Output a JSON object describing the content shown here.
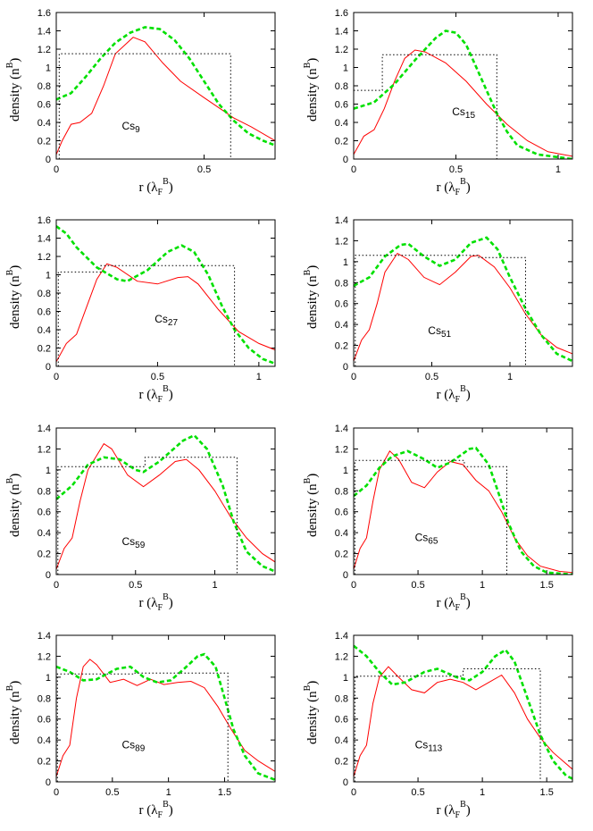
{
  "chart_data": [
    {
      "type": "line",
      "xlabel": {
        "text": "r (λ",
        "sub": "F",
        "sup": "B",
        "end": ")"
      },
      "ylabel": {
        "text": "density (n",
        "sup": "B",
        "end": ")"
      },
      "annotation": {
        "text": "Cs",
        "sub": "9"
      },
      "xlim": [
        0,
        0.74
      ],
      "xticks": [
        0,
        0.5
      ],
      "ylim": [
        0,
        1.6
      ],
      "yticks": [
        0,
        0.2,
        0.4,
        0.6,
        0.8,
        1,
        1.2,
        1.4,
        1.6
      ],
      "series": [
        {
          "style": "solid",
          "color": "#ff0000",
          "x": [
            0,
            0.02,
            0.05,
            0.08,
            0.12,
            0.16,
            0.2,
            0.26,
            0.3,
            0.36,
            0.42,
            0.5,
            0.6,
            0.66,
            0.74
          ],
          "values": [
            0.05,
            0.2,
            0.38,
            0.4,
            0.5,
            0.8,
            1.15,
            1.33,
            1.28,
            1.05,
            0.85,
            0.67,
            0.45,
            0.35,
            0.2
          ]
        },
        {
          "style": "dashed",
          "color": "#00e000",
          "x": [
            0,
            0.05,
            0.1,
            0.15,
            0.2,
            0.25,
            0.3,
            0.35,
            0.4,
            0.45,
            0.5,
            0.55,
            0.6,
            0.65,
            0.7,
            0.74
          ],
          "values": [
            0.65,
            0.72,
            0.9,
            1.1,
            1.27,
            1.38,
            1.44,
            1.42,
            1.3,
            1.1,
            0.85,
            0.6,
            0.42,
            0.28,
            0.2,
            0.15
          ]
        },
        {
          "style": "dotted",
          "color": "#000000",
          "x": [
            0.01,
            0.01,
            0.59,
            0.59
          ],
          "values": [
            0,
            1.15,
            1.15,
            0
          ]
        }
      ]
    },
    {
      "type": "line",
      "xlabel": {
        "text": "r (λ",
        "sub": "F",
        "sup": "B",
        "end": ")"
      },
      "ylabel": {
        "text": "density (n",
        "sup": "B",
        "end": ")"
      },
      "annotation": {
        "text": "Cs",
        "sub": "15"
      },
      "xlim": [
        0,
        1.07
      ],
      "xticks": [
        0,
        0.5,
        1
      ],
      "ylim": [
        0,
        1.6
      ],
      "yticks": [
        0,
        0.2,
        0.4,
        0.6,
        0.8,
        1,
        1.2,
        1.4,
        1.6
      ],
      "series": [
        {
          "style": "solid",
          "color": "#ff0000",
          "x": [
            0,
            0.05,
            0.1,
            0.15,
            0.2,
            0.25,
            0.3,
            0.35,
            0.45,
            0.55,
            0.65,
            0.75,
            0.85,
            0.95,
            1.07
          ],
          "values": [
            0.05,
            0.25,
            0.32,
            0.55,
            0.85,
            1.1,
            1.19,
            1.17,
            1.05,
            0.85,
            0.6,
            0.38,
            0.2,
            0.08,
            0.03
          ]
        },
        {
          "style": "dashed",
          "color": "#00e000",
          "x": [
            0,
            0.1,
            0.2,
            0.3,
            0.4,
            0.45,
            0.5,
            0.55,
            0.6,
            0.65,
            0.7,
            0.75,
            0.8,
            0.9,
            1.07
          ],
          "values": [
            0.55,
            0.62,
            0.82,
            1.08,
            1.32,
            1.4,
            1.38,
            1.25,
            1.0,
            0.75,
            0.5,
            0.3,
            0.15,
            0.05,
            0
          ]
        },
        {
          "style": "dotted",
          "color": "#000000",
          "x": [
            0,
            0.14,
            0.14,
            0.7,
            0.7
          ],
          "values": [
            0.75,
            0.75,
            1.14,
            1.14,
            0
          ]
        }
      ]
    },
    {
      "type": "line",
      "xlabel": {
        "text": "r (λ",
        "sub": "F",
        "sup": "B",
        "end": ")"
      },
      "ylabel": {
        "text": "density (n",
        "sup": "B",
        "end": ")"
      },
      "annotation": {
        "text": "Cs",
        "sub": "27"
      },
      "xlim": [
        0,
        1.08
      ],
      "xticks": [
        0,
        0.5,
        1
      ],
      "ylim": [
        0,
        1.6
      ],
      "yticks": [
        0,
        0.2,
        0.4,
        0.6,
        0.8,
        1,
        1.2,
        1.4,
        1.6
      ],
      "series": [
        {
          "style": "solid",
          "color": "#ff0000",
          "x": [
            0,
            0.05,
            0.1,
            0.15,
            0.2,
            0.25,
            0.3,
            0.4,
            0.5,
            0.6,
            0.65,
            0.7,
            0.8,
            0.9,
            1.0,
            1.08
          ],
          "values": [
            0.05,
            0.25,
            0.35,
            0.65,
            0.95,
            1.12,
            1.08,
            0.93,
            0.9,
            0.97,
            0.98,
            0.9,
            0.62,
            0.38,
            0.25,
            0.18
          ]
        },
        {
          "style": "dashed",
          "color": "#00e000",
          "x": [
            0,
            0.05,
            0.1,
            0.2,
            0.3,
            0.35,
            0.45,
            0.55,
            0.62,
            0.68,
            0.75,
            0.82,
            0.88,
            0.95,
            1.02,
            1.08
          ],
          "values": [
            1.53,
            1.45,
            1.3,
            1.08,
            0.95,
            0.93,
            1.05,
            1.25,
            1.32,
            1.25,
            1.0,
            0.65,
            0.4,
            0.2,
            0.08,
            0.03
          ]
        },
        {
          "style": "dotted",
          "color": "#000000",
          "x": [
            0.01,
            0.01,
            0.22,
            0.22,
            0.88,
            0.88
          ],
          "values": [
            0,
            1.03,
            1.03,
            1.1,
            1.1,
            0
          ]
        }
      ]
    },
    {
      "type": "line",
      "xlabel": {
        "text": "r (λ",
        "sub": "F",
        "sup": "B",
        "end": ")"
      },
      "ylabel": {
        "text": "density (n",
        "sup": "B",
        "end": ")"
      },
      "annotation": {
        "text": "Cs",
        "sub": "51"
      },
      "xlim": [
        0,
        1.4
      ],
      "xticks": [
        0,
        0.5,
        1
      ],
      "ylim": [
        0,
        1.4
      ],
      "yticks": [
        0,
        0.2,
        0.4,
        0.6,
        0.8,
        1,
        1.2,
        1.4
      ],
      "series": [
        {
          "style": "solid",
          "color": "#ff0000",
          "x": [
            0,
            0.05,
            0.1,
            0.15,
            0.2,
            0.28,
            0.35,
            0.45,
            0.55,
            0.65,
            0.75,
            0.8,
            0.9,
            1.0,
            1.1,
            1.2,
            1.3,
            1.4
          ],
          "values": [
            0.05,
            0.25,
            0.35,
            0.6,
            0.9,
            1.08,
            1.02,
            0.85,
            0.78,
            0.9,
            1.05,
            1.06,
            0.95,
            0.75,
            0.5,
            0.3,
            0.18,
            0.12
          ]
        },
        {
          "style": "dashed",
          "color": "#00e000",
          "x": [
            0,
            0.1,
            0.2,
            0.3,
            0.35,
            0.45,
            0.55,
            0.65,
            0.75,
            0.85,
            0.92,
            1.0,
            1.1,
            1.2,
            1.3,
            1.4
          ],
          "values": [
            0.77,
            0.85,
            1.05,
            1.16,
            1.17,
            1.05,
            0.96,
            1.02,
            1.18,
            1.23,
            1.12,
            0.85,
            0.55,
            0.3,
            0.12,
            0.05
          ]
        },
        {
          "style": "dotted",
          "color": "#000000",
          "x": [
            0.01,
            0.01,
            0.8,
            0.8,
            1.1,
            1.1
          ],
          "values": [
            0,
            1.06,
            1.06,
            1.04,
            1.04,
            0
          ]
        }
      ]
    },
    {
      "type": "line",
      "xlabel": {
        "text": "r (λ",
        "sub": "F",
        "sup": "B",
        "end": ")"
      },
      "ylabel": {
        "text": "density (n",
        "sup": "B",
        "end": ")"
      },
      "annotation": {
        "text": "Cs",
        "sub": "59"
      },
      "xlim": [
        0,
        1.38
      ],
      "xticks": [
        0,
        0.5,
        1
      ],
      "ylim": [
        0,
        1.4
      ],
      "yticks": [
        0,
        0.2,
        0.4,
        0.6,
        0.8,
        1,
        1.2,
        1.4
      ],
      "series": [
        {
          "style": "solid",
          "color": "#ff0000",
          "x": [
            0,
            0.05,
            0.1,
            0.15,
            0.2,
            0.3,
            0.35,
            0.45,
            0.55,
            0.65,
            0.75,
            0.82,
            0.9,
            1.0,
            1.1,
            1.2,
            1.3,
            1.38
          ],
          "values": [
            0.05,
            0.25,
            0.35,
            0.7,
            1.0,
            1.25,
            1.2,
            0.95,
            0.84,
            0.95,
            1.08,
            1.1,
            1.0,
            0.8,
            0.55,
            0.35,
            0.2,
            0.12
          ]
        },
        {
          "style": "dashed",
          "color": "#00e000",
          "x": [
            0,
            0.1,
            0.2,
            0.3,
            0.4,
            0.5,
            0.55,
            0.65,
            0.8,
            0.87,
            0.95,
            1.05,
            1.12,
            1.2,
            1.3,
            1.38
          ],
          "values": [
            0.72,
            0.85,
            1.05,
            1.12,
            1.1,
            1.0,
            0.98,
            1.08,
            1.28,
            1.33,
            1.2,
            0.85,
            0.5,
            0.22,
            0.08,
            0.03
          ]
        },
        {
          "style": "dotted",
          "color": "#000000",
          "x": [
            0.01,
            0.01,
            0.56,
            0.56,
            1.14,
            1.14
          ],
          "values": [
            0,
            1.03,
            1.03,
            1.12,
            1.12,
            0
          ]
        }
      ]
    },
    {
      "type": "line",
      "xlabel": {
        "text": "r (λ",
        "sub": "F",
        "sup": "B",
        "end": ")"
      },
      "ylabel": {
        "text": "density (n",
        "sup": "B",
        "end": ")"
      },
      "annotation": {
        "text": "Cs",
        "sub": "65"
      },
      "xlim": [
        0,
        1.7
      ],
      "xticks": [
        0,
        0.5,
        1,
        1.5
      ],
      "ylim": [
        0,
        1.4
      ],
      "yticks": [
        0,
        0.2,
        0.4,
        0.6,
        0.8,
        1,
        1.2,
        1.4
      ],
      "series": [
        {
          "style": "solid",
          "color": "#ff0000",
          "x": [
            0,
            0.05,
            0.1,
            0.15,
            0.2,
            0.28,
            0.35,
            0.45,
            0.55,
            0.65,
            0.75,
            0.85,
            0.95,
            1.05,
            1.15,
            1.25,
            1.35,
            1.45,
            1.6,
            1.7
          ],
          "values": [
            0.05,
            0.25,
            0.35,
            0.7,
            1.0,
            1.18,
            1.1,
            0.88,
            0.83,
            0.98,
            1.08,
            1.05,
            0.9,
            0.8,
            0.6,
            0.35,
            0.18,
            0.08,
            0.03,
            0.02
          ]
        },
        {
          "style": "dashed",
          "color": "#00e000",
          "x": [
            0,
            0.1,
            0.2,
            0.3,
            0.42,
            0.55,
            0.65,
            0.75,
            0.9,
            0.95,
            1.05,
            1.12,
            1.2,
            1.3,
            1.4,
            1.5,
            1.7
          ],
          "values": [
            0.75,
            0.85,
            1.02,
            1.13,
            1.18,
            1.1,
            1.02,
            1.07,
            1.2,
            1.21,
            1.05,
            0.8,
            0.5,
            0.22,
            0.08,
            0.02,
            0
          ]
        },
        {
          "style": "dotted",
          "color": "#000000",
          "x": [
            0.01,
            0.01,
            0.86,
            0.86,
            1.19,
            1.19
          ],
          "values": [
            0,
            1.09,
            1.09,
            1.03,
            1.03,
            0
          ]
        }
      ]
    },
    {
      "type": "line",
      "xlabel": {
        "text": "r (λ",
        "sub": "F",
        "sup": "B",
        "end": ")"
      },
      "ylabel": {
        "text": "density (n",
        "sup": "B",
        "end": ")"
      },
      "annotation": {
        "text": "Cs",
        "sub": "89"
      },
      "xlim": [
        0,
        1.95
      ],
      "xticks": [
        0,
        0.5,
        1,
        1.5
      ],
      "ylim": [
        0,
        1.4
      ],
      "yticks": [
        0,
        0.2,
        0.4,
        0.6,
        0.8,
        1,
        1.2,
        1.4
      ],
      "series": [
        {
          "style": "solid",
          "color": "#ff0000",
          "x": [
            0,
            0.06,
            0.12,
            0.18,
            0.24,
            0.3,
            0.36,
            0.48,
            0.6,
            0.72,
            0.84,
            0.96,
            1.08,
            1.2,
            1.32,
            1.44,
            1.56,
            1.68,
            1.8,
            1.95
          ],
          "values": [
            0.05,
            0.25,
            0.35,
            0.8,
            1.1,
            1.17,
            1.12,
            0.95,
            0.98,
            0.92,
            0.98,
            0.93,
            0.95,
            0.96,
            0.9,
            0.72,
            0.5,
            0.3,
            0.2,
            0.1
          ]
        },
        {
          "style": "dashed",
          "color": "#00e000",
          "x": [
            0,
            0.12,
            0.24,
            0.36,
            0.54,
            0.66,
            0.78,
            0.9,
            1.02,
            1.14,
            1.26,
            1.32,
            1.42,
            1.5,
            1.58,
            1.68,
            1.8,
            1.95
          ],
          "values": [
            1.1,
            1.05,
            0.97,
            0.98,
            1.08,
            1.1,
            1.0,
            0.95,
            0.97,
            1.08,
            1.2,
            1.22,
            1.1,
            0.8,
            0.5,
            0.25,
            0.08,
            0.02
          ]
        },
        {
          "style": "dotted",
          "color": "#000000",
          "x": [
            0.01,
            0.01,
            0.7,
            0.7,
            1.53,
            1.53
          ],
          "values": [
            0,
            1.03,
            1.03,
            1.04,
            1.04,
            0
          ]
        }
      ]
    },
    {
      "type": "line",
      "xlabel": {
        "text": "r (λ",
        "sub": "F",
        "sup": "B",
        "end": ")"
      },
      "ylabel": {
        "text": "density (n",
        "sup": "B",
        "end": ")"
      },
      "annotation": {
        "text": "Cs",
        "sub": "113"
      },
      "xlim": [
        0,
        1.7
      ],
      "xticks": [
        0,
        0.5,
        1,
        1.5
      ],
      "ylim": [
        0,
        1.4
      ],
      "yticks": [
        0,
        0.2,
        0.4,
        0.6,
        0.8,
        1,
        1.2,
        1.4
      ],
      "series": [
        {
          "style": "solid",
          "color": "#ff0000",
          "x": [
            0,
            0.05,
            0.1,
            0.15,
            0.2,
            0.27,
            0.35,
            0.45,
            0.55,
            0.65,
            0.75,
            0.85,
            0.95,
            1.05,
            1.15,
            1.25,
            1.35,
            1.45,
            1.55,
            1.7
          ],
          "values": [
            0.05,
            0.25,
            0.35,
            0.75,
            1.0,
            1.1,
            1.0,
            0.88,
            0.85,
            0.95,
            0.98,
            0.95,
            0.88,
            0.95,
            1.02,
            0.85,
            0.6,
            0.42,
            0.28,
            0.12
          ]
        },
        {
          "style": "dashed",
          "color": "#00e000",
          "x": [
            0,
            0.1,
            0.2,
            0.3,
            0.4,
            0.55,
            0.65,
            0.8,
            0.9,
            1.0,
            1.1,
            1.18,
            1.25,
            1.35,
            1.45,
            1.55,
            1.65,
            1.7
          ],
          "values": [
            1.3,
            1.2,
            1.05,
            0.93,
            0.95,
            1.05,
            1.08,
            1.0,
            0.97,
            1.05,
            1.2,
            1.26,
            1.15,
            0.8,
            0.45,
            0.2,
            0.06,
            0.03
          ]
        },
        {
          "style": "dotted",
          "color": "#000000",
          "x": [
            0.01,
            0.01,
            0.85,
            0.85,
            1.45,
            1.45
          ],
          "values": [
            0,
            1.01,
            1.01,
            1.08,
            1.08,
            0
          ]
        }
      ]
    }
  ]
}
